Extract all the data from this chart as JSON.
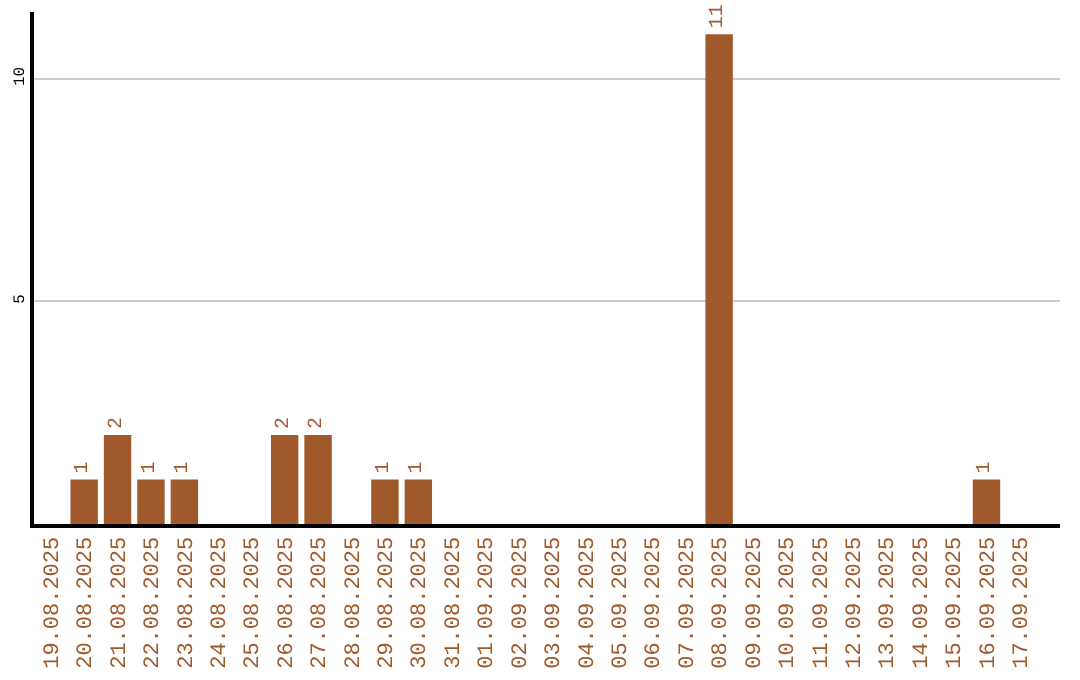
{
  "chart_data": {
    "type": "bar",
    "categories": [
      "19.08.2025",
      "20.08.2025",
      "21.08.2025",
      "22.08.2025",
      "23.08.2025",
      "24.08.2025",
      "25.08.2025",
      "26.08.2025",
      "27.08.2025",
      "28.08.2025",
      "29.08.2025",
      "30.08.2025",
      "31.08.2025",
      "01.09.2025",
      "02.09.2025",
      "03.09.2025",
      "04.09.2025",
      "05.09.2025",
      "06.09.2025",
      "07.09.2025",
      "08.09.2025",
      "09.09.2025",
      "10.09.2025",
      "11.09.2025",
      "12.09.2025",
      "13.09.2025",
      "14.09.2025",
      "15.09.2025",
      "16.09.2025",
      "17.09.2025"
    ],
    "values": [
      0,
      1,
      2,
      1,
      1,
      0,
      0,
      2,
      2,
      0,
      1,
      1,
      0,
      0,
      0,
      0,
      0,
      0,
      0,
      0,
      11,
      0,
      0,
      0,
      0,
      0,
      0,
      0,
      1,
      0
    ],
    "value_labels": [
      null,
      "1",
      "2",
      "1",
      "1",
      null,
      null,
      "2",
      "2",
      null,
      "1",
      "1",
      null,
      null,
      null,
      null,
      null,
      null,
      null,
      null,
      "11",
      null,
      null,
      null,
      null,
      null,
      null,
      null,
      "1",
      null
    ],
    "color": "#a0592a",
    "ylim": [
      0,
      11.5
    ],
    "yticks": [
      5,
      10
    ],
    "grid": "y",
    "legend": false
  }
}
